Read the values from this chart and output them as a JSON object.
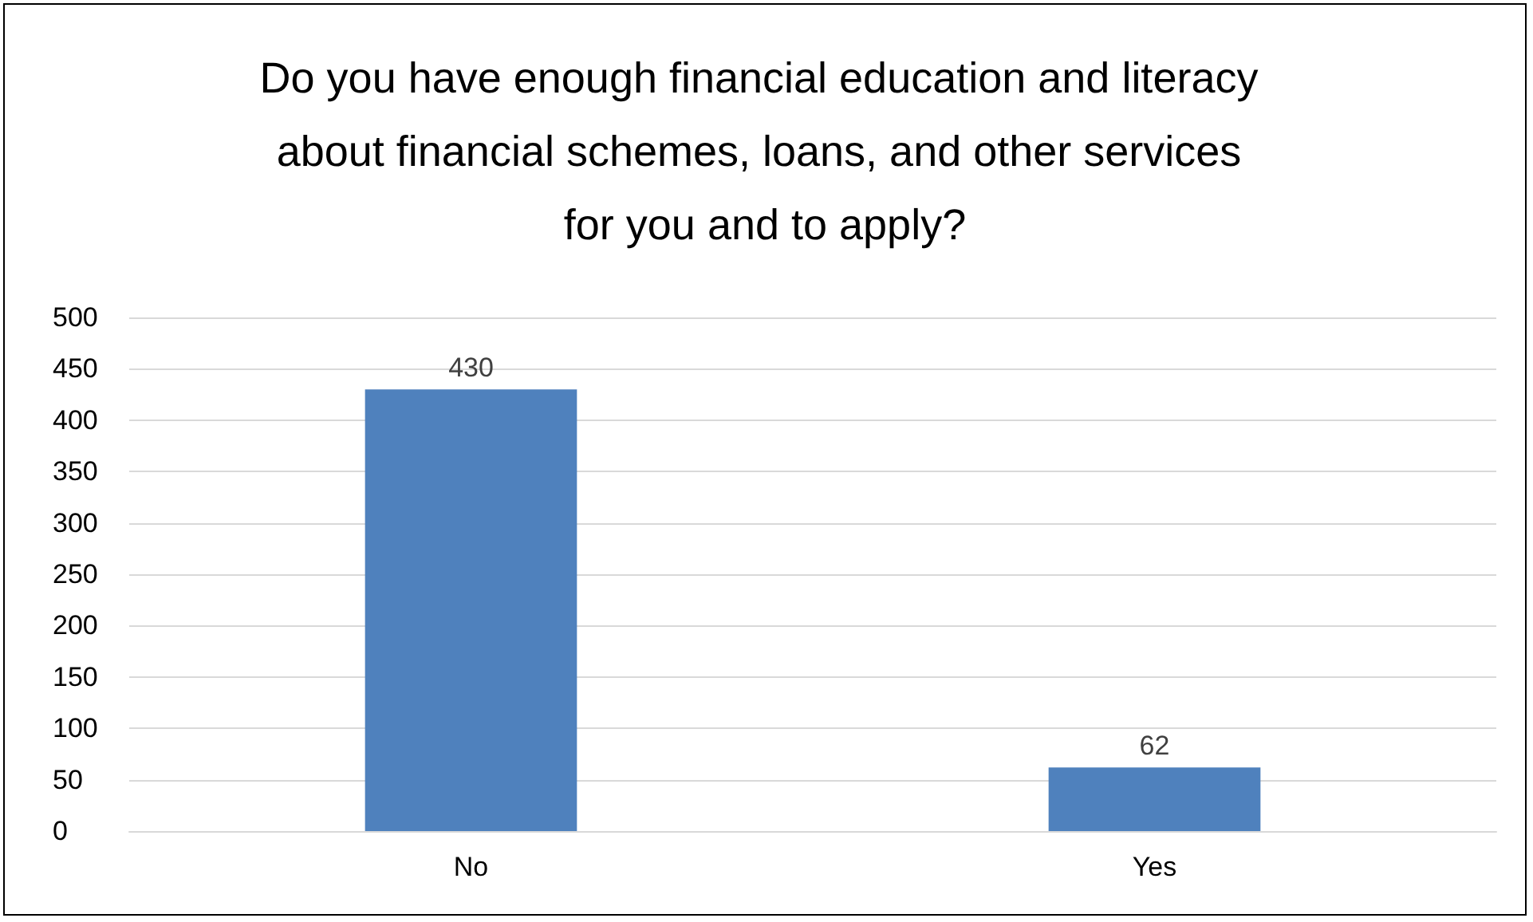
{
  "chart_data": {
    "type": "bar",
    "title": "Do you have enough financial education and literacy about financial schemes, loans, and other services for you and to apply?",
    "categories": [
      "No",
      "Yes"
    ],
    "values": [
      430,
      62
    ],
    "color": "#4f81bd",
    "ylim": [
      0,
      500
    ],
    "yticks": [
      0,
      50,
      100,
      150,
      200,
      250,
      300,
      350,
      400,
      450,
      500
    ],
    "grid": "y",
    "data_labels": true
  }
}
